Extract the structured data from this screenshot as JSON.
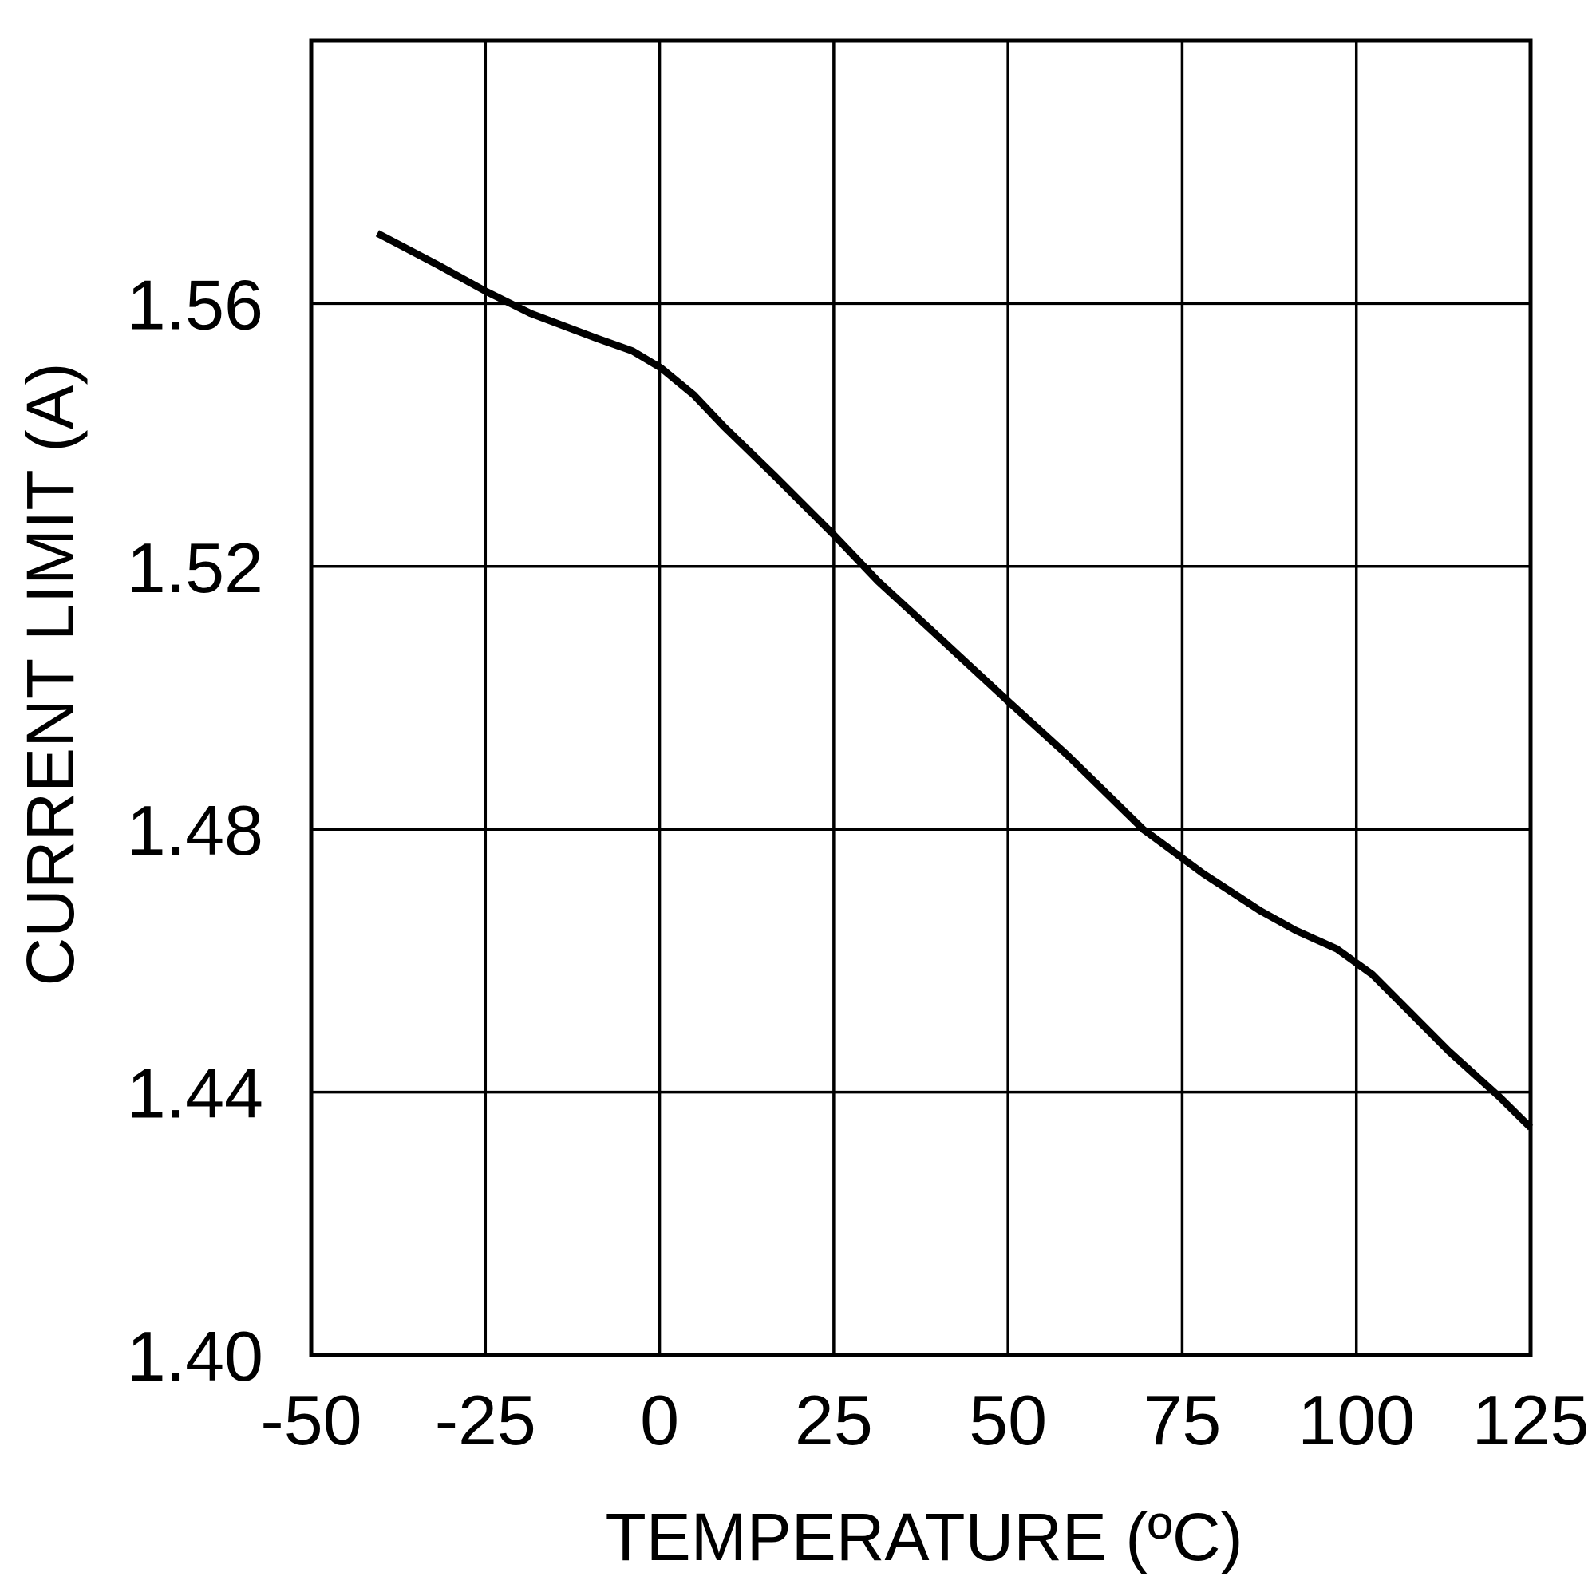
{
  "chart_data": {
    "type": "line",
    "title": "",
    "xlabel": "TEMPERATURE (ºC)",
    "ylabel": "CURRENT LIMIT (A)",
    "xlim": [
      -50,
      125
    ],
    "ylim": [
      1.4,
      1.6
    ],
    "grid": true,
    "xticks": [
      -50,
      -25,
      0,
      25,
      50,
      75,
      100,
      125
    ],
    "xtick_labels": [
      "-50",
      "-25",
      "0",
      "25",
      "50",
      "75",
      "100",
      "125"
    ],
    "yticks": [
      1.4,
      1.44,
      1.48,
      1.52,
      1.56,
      1.6
    ],
    "ytick_labels": [
      "1.40",
      "1.44",
      "1.48",
      "1.52",
      "1.56",
      ""
    ],
    "line_color": "#000000",
    "series": [
      {
        "x": [
          -40.5,
          -31.7,
          -25,
          -18.5,
          -9,
          -3.9,
          0.2,
          4.9,
          9.3,
          16.6,
          25,
          31.3,
          39.3,
          50,
          58.4,
          69.4,
          78.1,
          86.2,
          91.3,
          97.2,
          102.3,
          113.3,
          120.6,
          125
        ],
        "y": [
          1.5707,
          1.5658,
          1.5619,
          1.5585,
          1.5547,
          1.5528,
          1.5502,
          1.5461,
          1.5412,
          1.5337,
          1.5248,
          1.5178,
          1.51,
          1.4995,
          1.4914,
          1.48,
          1.4732,
          1.4676,
          1.4646,
          1.4618,
          1.4579,
          1.4462,
          1.4392,
          1.4346
        ]
      }
    ]
  }
}
